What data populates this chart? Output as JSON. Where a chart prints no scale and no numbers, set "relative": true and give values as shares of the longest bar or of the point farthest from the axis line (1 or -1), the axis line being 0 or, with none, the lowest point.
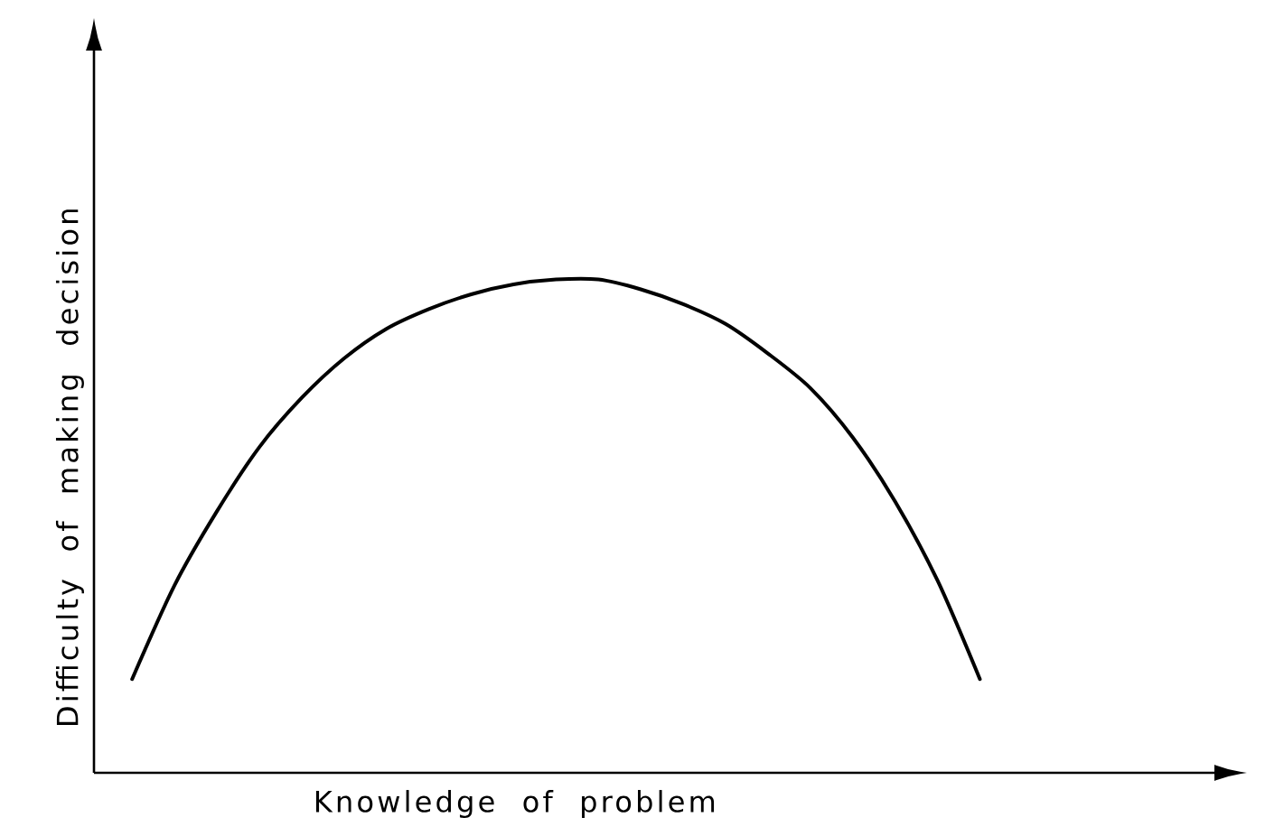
{
  "chart_data": {
    "type": "line",
    "xlabel": "Knowledge of problem",
    "ylabel": "Difficulty of making decision",
    "relative": true,
    "categories": [
      null,
      null,
      null,
      null,
      null,
      null,
      null,
      null,
      null,
      null,
      null,
      null,
      null,
      null,
      null,
      null,
      null,
      null,
      null,
      null,
      null
    ],
    "values": [
      0.19,
      0.38,
      0.53,
      0.66,
      0.76,
      0.84,
      0.9,
      0.94,
      0.97,
      0.99,
      1.0,
      1.0,
      0.98,
      0.95,
      0.91,
      0.85,
      0.78,
      0.68,
      0.55,
      0.39,
      0.19
    ],
    "color": "#000000",
    "marker": "none",
    "line_style": "solid"
  }
}
